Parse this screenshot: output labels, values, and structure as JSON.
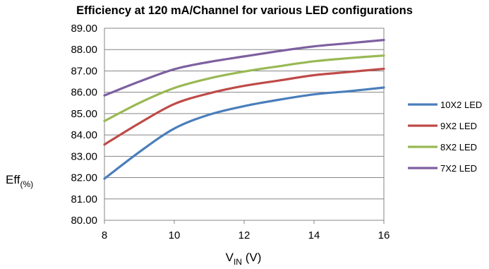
{
  "chart_data": {
    "type": "line",
    "title": "Efficiency at 120 mA/Channel for various LED configurations",
    "ylabel": {
      "main": "Eff",
      "sub": "(%)"
    },
    "xlabel": {
      "main": "V",
      "sub": "IN",
      "unit": "(V)"
    },
    "ylim": [
      80,
      89
    ],
    "yticks": [
      "80.00",
      "81.00",
      "82.00",
      "83.00",
      "84.00",
      "85.00",
      "86.00",
      "87.00",
      "88.00",
      "89.00"
    ],
    "xlim": [
      8,
      16
    ],
    "xticks": [
      "8",
      "10",
      "12",
      "14",
      "16"
    ],
    "grid": true,
    "legend_position": "right",
    "series": [
      {
        "name": "10X2 LED",
        "color": "#4a7ebb",
        "points": [
          [
            8,
            81.95
          ],
          [
            9,
            83.2
          ],
          [
            10,
            84.3
          ],
          [
            11,
            84.95
          ],
          [
            12,
            85.35
          ],
          [
            13,
            85.65
          ],
          [
            14,
            85.9
          ],
          [
            15,
            86.05
          ],
          [
            16,
            86.22
          ]
        ]
      },
      {
        "name": "9X2 LED",
        "color": "#be4b48",
        "points": [
          [
            8,
            83.55
          ],
          [
            9,
            84.55
          ],
          [
            10,
            85.45
          ],
          [
            11,
            85.95
          ],
          [
            12,
            86.3
          ],
          [
            13,
            86.55
          ],
          [
            14,
            86.8
          ],
          [
            15,
            86.95
          ],
          [
            16,
            87.1
          ]
        ]
      },
      {
        "name": "8X2 LED",
        "color": "#98b954",
        "points": [
          [
            8,
            84.65
          ],
          [
            9,
            85.5
          ],
          [
            10,
            86.2
          ],
          [
            11,
            86.65
          ],
          [
            12,
            86.97
          ],
          [
            13,
            87.22
          ],
          [
            14,
            87.45
          ],
          [
            15,
            87.6
          ],
          [
            16,
            87.72
          ]
        ]
      },
      {
        "name": "7X2 LED",
        "color": "#7d60a0",
        "points": [
          [
            8,
            85.85
          ],
          [
            9,
            86.5
          ],
          [
            10,
            87.08
          ],
          [
            11,
            87.42
          ],
          [
            12,
            87.68
          ],
          [
            13,
            87.93
          ],
          [
            14,
            88.15
          ],
          [
            15,
            88.3
          ],
          [
            16,
            88.45
          ]
        ]
      }
    ]
  }
}
